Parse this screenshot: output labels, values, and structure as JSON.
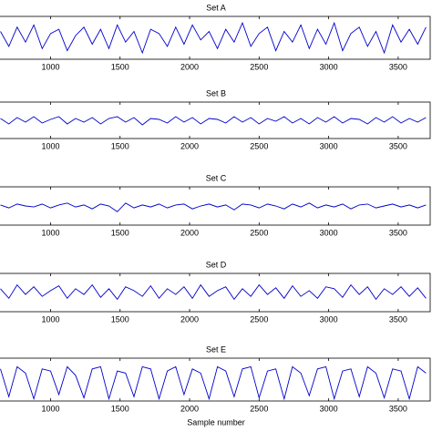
{
  "chart_data": [
    {
      "type": "line",
      "title": "Set A",
      "color": "#0000cc",
      "xlim": [
        630,
        3730
      ],
      "ylim": [
        -1,
        1
      ],
      "xticks": [
        1000,
        1500,
        2000,
        2500,
        3000,
        3500
      ],
      "x": [
        640,
        700,
        760,
        820,
        880,
        940,
        1000,
        1060,
        1120,
        1180,
        1240,
        1300,
        1360,
        1420,
        1480,
        1540,
        1600,
        1660,
        1720,
        1780,
        1840,
        1900,
        1960,
        2020,
        2080,
        2140,
        2200,
        2260,
        2320,
        2380,
        2440,
        2500,
        2560,
        2620,
        2680,
        2740,
        2800,
        2860,
        2920,
        2980,
        3040,
        3100,
        3160,
        3220,
        3280,
        3340,
        3400,
        3460,
        3520,
        3580,
        3640,
        3700
      ],
      "values": [
        0.3,
        -0.4,
        0.5,
        -0.2,
        0.6,
        -0.5,
        0.2,
        0.4,
        -0.6,
        0.1,
        0.5,
        -0.3,
        0.4,
        -0.5,
        0.6,
        -0.2,
        0.3,
        -0.7,
        0.4,
        0.2,
        -0.4,
        0.5,
        -0.3,
        0.6,
        -0.1,
        0.3,
        -0.5,
        0.4,
        -0.2,
        0.7,
        -0.4,
        0.2,
        0.5,
        -0.6,
        0.3,
        -0.2,
        0.6,
        -0.5,
        0.4,
        -0.3,
        0.7,
        -0.6,
        0.2,
        0.5,
        -0.4,
        0.3,
        -0.7,
        0.6,
        -0.2,
        0.4,
        -0.3,
        0.5
      ]
    },
    {
      "type": "line",
      "title": "Set B",
      "color": "#0000cc",
      "xlim": [
        630,
        3730
      ],
      "ylim": [
        -1,
        1
      ],
      "xticks": [
        1000,
        1500,
        2000,
        2500,
        3000,
        3500
      ],
      "x": [
        640,
        700,
        760,
        820,
        880,
        940,
        1000,
        1060,
        1120,
        1180,
        1240,
        1300,
        1360,
        1420,
        1480,
        1540,
        1600,
        1660,
        1720,
        1780,
        1840,
        1900,
        1960,
        2020,
        2080,
        2140,
        2200,
        2260,
        2320,
        2380,
        2440,
        2500,
        2560,
        2620,
        2680,
        2740,
        2800,
        2860,
        2920,
        2980,
        3040,
        3100,
        3160,
        3220,
        3280,
        3340,
        3400,
        3460,
        3520,
        3580,
        3640,
        3700
      ],
      "values": [
        0.1,
        -0.2,
        0.15,
        -0.1,
        0.2,
        -0.15,
        0.05,
        0.2,
        -0.2,
        0.1,
        -0.1,
        0.15,
        -0.2,
        0.1,
        0.2,
        -0.1,
        0.15,
        -0.25,
        0.1,
        0.05,
        -0.15,
        0.2,
        -0.1,
        0.15,
        -0.2,
        0.1,
        0.05,
        -0.15,
        0.2,
        -0.1,
        0.15,
        -0.2,
        0.1,
        -0.05,
        0.2,
        -0.15,
        0.1,
        -0.2,
        0.15,
        -0.1,
        0.2,
        -0.15,
        0.1,
        0.05,
        -0.2,
        0.15,
        -0.1,
        0.2,
        -0.15,
        0.1,
        -0.1,
        0.15
      ]
    },
    {
      "type": "line",
      "title": "Set C",
      "color": "#0000cc",
      "xlim": [
        630,
        3730
      ],
      "ylim": [
        -1,
        1
      ],
      "xticks": [
        1000,
        1500,
        2000,
        2500,
        3000,
        3500
      ],
      "x": [
        640,
        700,
        760,
        820,
        880,
        940,
        1000,
        1060,
        1120,
        1180,
        1240,
        1300,
        1360,
        1420,
        1480,
        1540,
        1600,
        1660,
        1720,
        1780,
        1840,
        1900,
        1960,
        2020,
        2080,
        2140,
        2200,
        2260,
        2320,
        2380,
        2440,
        2500,
        2560,
        2620,
        2680,
        2740,
        2800,
        2860,
        2920,
        2980,
        3040,
        3100,
        3160,
        3220,
        3280,
        3340,
        3400,
        3460,
        3520,
        3580,
        3640,
        3700
      ],
      "values": [
        0.05,
        -0.1,
        0.1,
        0.0,
        -0.05,
        0.1,
        -0.1,
        0.05,
        0.15,
        -0.05,
        0.05,
        -0.15,
        0.1,
        0.0,
        -0.3,
        0.15,
        -0.1,
        0.05,
        -0.05,
        0.1,
        -0.1,
        0.05,
        0.1,
        -0.15,
        0.0,
        0.1,
        -0.05,
        0.05,
        -0.2,
        0.1,
        0.05,
        -0.1,
        0.1,
        0.0,
        -0.15,
        0.1,
        -0.05,
        0.15,
        -0.1,
        0.05,
        -0.05,
        0.1,
        -0.15,
        0.05,
        0.1,
        -0.1,
        0.0,
        0.1,
        -0.05,
        0.05,
        -0.1,
        0.05
      ]
    },
    {
      "type": "line",
      "title": "Set D",
      "color": "#0000cc",
      "xlim": [
        630,
        3730
      ],
      "ylim": [
        -1,
        1
      ],
      "xticks": [
        1000,
        1500,
        2000,
        2500,
        3000,
        3500
      ],
      "x": [
        640,
        700,
        760,
        820,
        880,
        940,
        1000,
        1060,
        1120,
        1180,
        1240,
        1300,
        1360,
        1420,
        1480,
        1540,
        1600,
        1660,
        1720,
        1780,
        1840,
        1900,
        1960,
        2020,
        2080,
        2140,
        2200,
        2260,
        2320,
        2380,
        2440,
        2500,
        2560,
        2620,
        2680,
        2740,
        2800,
        2860,
        2920,
        2980,
        3040,
        3100,
        3160,
        3220,
        3280,
        3340,
        3400,
        3460,
        3520,
        3580,
        3640,
        3700
      ],
      "values": [
        0.2,
        -0.3,
        0.4,
        -0.1,
        0.3,
        -0.2,
        0.1,
        0.35,
        -0.3,
        0.2,
        -0.1,
        0.4,
        -0.25,
        0.2,
        -0.35,
        0.3,
        0.1,
        -0.2,
        0.35,
        -0.3,
        0.2,
        -0.1,
        0.3,
        -0.3,
        0.4,
        -0.2,
        0.1,
        0.3,
        -0.35,
        0.2,
        -0.2,
        0.4,
        -0.1,
        0.25,
        -0.3,
        0.35,
        -0.2,
        0.1,
        -0.3,
        0.3,
        0.2,
        -0.25,
        0.4,
        -0.1,
        0.3,
        -0.35,
        0.2,
        -0.1,
        0.3,
        -0.2,
        0.25,
        -0.3
      ]
    },
    {
      "type": "line",
      "title": "Set E",
      "color": "#0000cc",
      "xlabel": "Sample number",
      "xlim": [
        630,
        3730
      ],
      "ylim": [
        -1,
        1
      ],
      "xticks": [
        1000,
        1500,
        2000,
        2500,
        3000,
        3500
      ],
      "x": [
        640,
        700,
        760,
        820,
        880,
        940,
        1000,
        1060,
        1120,
        1180,
        1240,
        1300,
        1360,
        1420,
        1480,
        1540,
        1600,
        1660,
        1720,
        1780,
        1840,
        1900,
        1960,
        2020,
        2080,
        2140,
        2200,
        2260,
        2320,
        2380,
        2440,
        2500,
        2560,
        2620,
        2680,
        2740,
        2800,
        2860,
        2920,
        2980,
        3040,
        3100,
        3160,
        3220,
        3280,
        3340,
        3400,
        3460,
        3520,
        3580,
        3640,
        3700
      ],
      "values": [
        0.5,
        -0.8,
        0.6,
        0.3,
        -0.9,
        0.5,
        0.4,
        -0.7,
        0.6,
        0.2,
        -0.85,
        0.5,
        0.6,
        -0.9,
        0.4,
        0.3,
        -0.8,
        0.6,
        0.5,
        -0.9,
        0.4,
        0.6,
        -0.7,
        0.5,
        0.3,
        -0.9,
        0.6,
        0.4,
        -0.8,
        0.5,
        0.6,
        -0.85,
        0.4,
        0.5,
        -0.9,
        0.6,
        0.3,
        -0.75,
        0.5,
        0.6,
        -0.9,
        0.4,
        0.5,
        -0.8,
        0.6,
        0.3,
        -0.85,
        0.5,
        0.4,
        -0.9,
        0.6,
        0.3
      ]
    }
  ]
}
